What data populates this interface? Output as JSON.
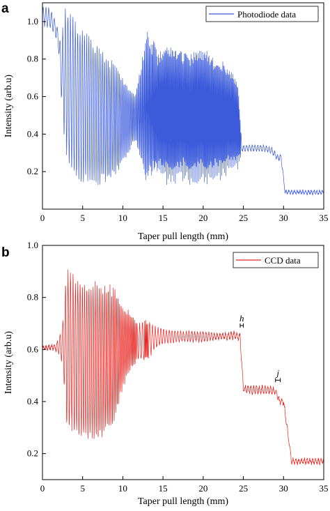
{
  "chart_data": [
    {
      "type": "line",
      "panel_label": "a",
      "xlabel": "Taper pull length (mm)",
      "ylabel": "Intensity (arb.u)",
      "xlim": [
        0,
        35
      ],
      "ylim": [
        0,
        1.1
      ],
      "xticks": [
        "0",
        "5",
        "10",
        "15",
        "20",
        "25",
        "30",
        "35"
      ],
      "yticks": [
        "0.2",
        "0.4",
        "0.6",
        "0.8",
        "1.0"
      ],
      "grid": false,
      "legend_position": "top-right",
      "series": [
        {
          "name": "Photodiode data",
          "color": "#3b5bdb",
          "envelope": {
            "x": [
              0,
              0.5,
              1.0,
              1.5,
              2.0,
              2.3,
              2.8,
              3.5,
              4.5,
              5.5,
              6.5,
              7.5,
              8.5,
              9.5,
              10.5,
              11.5,
              12.5,
              13.0,
              13.5,
              14.5,
              15.5,
              16.5,
              17.5,
              18.5,
              19.5,
              20.5,
              21.5,
              22.5,
              23.5,
              24.3,
              24.8,
              25.5,
              26.5,
              27.5,
              28.5,
              29.2,
              29.7,
              30.2,
              31.5,
              33,
              35
            ],
            "high": [
              1.08,
              1.08,
              1.07,
              1.02,
              0.95,
              0.88,
              1.08,
              1.07,
              1.0,
              0.96,
              0.9,
              0.85,
              0.8,
              0.75,
              0.68,
              0.62,
              0.84,
              0.96,
              0.92,
              0.86,
              0.9,
              0.88,
              0.86,
              0.85,
              0.88,
              0.86,
              0.82,
              0.8,
              0.75,
              0.7,
              0.34,
              0.34,
              0.34,
              0.34,
              0.33,
              0.29,
              0.29,
              0.1,
              0.1,
              0.1,
              0.1
            ],
            "low": [
              0.98,
              0.97,
              0.96,
              0.94,
              0.85,
              0.62,
              0.32,
              0.18,
              0.14,
              0.12,
              0.12,
              0.12,
              0.15,
              0.2,
              0.28,
              0.36,
              0.2,
              0.12,
              0.15,
              0.16,
              0.13,
              0.12,
              0.15,
              0.12,
              0.14,
              0.12,
              0.15,
              0.16,
              0.2,
              0.2,
              0.31,
              0.31,
              0.31,
              0.31,
              0.3,
              0.26,
              0.26,
              0.08,
              0.08,
              0.08,
              0.08
            ],
            "fringe_period_mm": [
              0.45,
              0.35,
              0.28,
              0.22,
              0.18,
              0.15,
              0.14,
              0.13,
              0.12,
              0.11,
              0.1
            ]
          }
        }
      ]
    },
    {
      "type": "line",
      "panel_label": "b",
      "xlabel": "Taper pull length (mm)",
      "ylabel": "Intensity (arb.u)",
      "xlim": [
        0,
        35
      ],
      "ylim": [
        0.1,
        1.0
      ],
      "xticks": [
        "0",
        "5",
        "10",
        "15",
        "20",
        "25",
        "30",
        "35"
      ],
      "yticks": [
        "0.2",
        "0.4",
        "0.6",
        "0.8",
        "1.0"
      ],
      "grid": false,
      "legend_position": "top-right",
      "series": [
        {
          "name": "CCD data",
          "color": "#e8231f",
          "envelope": {
            "x": [
              0,
              1.5,
              2.0,
              2.5,
              3.0,
              4.0,
              5.0,
              6.0,
              7.0,
              8.0,
              9.0,
              10.0,
              11.0,
              12.0,
              13.0,
              14.0,
              15.0,
              17.0,
              20.0,
              22.0,
              24.0,
              24.6,
              25.0,
              26.0,
              28.0,
              29.0,
              29.5,
              30.0,
              31.0,
              33.0,
              35.0
            ],
            "high": [
              0.61,
              0.62,
              0.64,
              0.7,
              0.92,
              0.9,
              0.88,
              0.87,
              0.86,
              0.86,
              0.85,
              0.78,
              0.74,
              0.7,
              0.72,
              0.69,
              0.68,
              0.67,
              0.67,
              0.66,
              0.67,
              0.66,
              0.46,
              0.46,
              0.46,
              0.45,
              0.41,
              0.41,
              0.18,
              0.18,
              0.18
            ],
            "low": [
              0.6,
              0.6,
              0.58,
              0.54,
              0.3,
              0.26,
              0.24,
              0.23,
              0.24,
              0.26,
              0.3,
              0.45,
              0.52,
              0.56,
              0.55,
              0.6,
              0.62,
              0.63,
              0.63,
              0.64,
              0.64,
              0.63,
              0.44,
              0.43,
              0.43,
              0.43,
              0.39,
              0.39,
              0.16,
              0.16,
              0.16
            ]
          }
        }
      ],
      "annotations": [
        {
          "text": "h",
          "x_start": 24.6,
          "x_end": 25.0,
          "y": 0.66
        },
        {
          "text": "j",
          "x_start": 29.0,
          "x_end": 29.6,
          "y": 0.45
        }
      ]
    }
  ]
}
